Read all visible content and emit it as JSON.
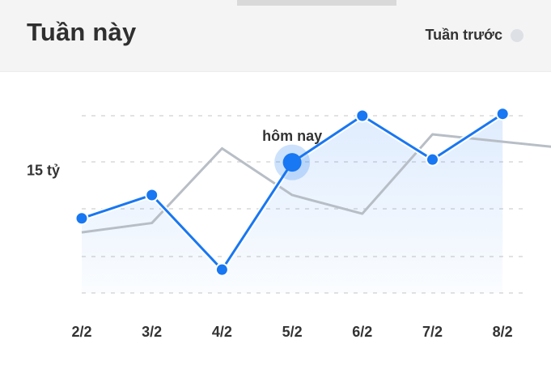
{
  "header": {
    "title": "Tuần này",
    "legend_label": "Tuần trước"
  },
  "colors": {
    "accent": "#1877f2",
    "previous_week": "#b8bec6",
    "grid": "#d8d8d8"
  },
  "chart_data": {
    "type": "line",
    "categories": [
      "2/2",
      "3/2",
      "4/2",
      "5/2",
      "6/2",
      "7/2",
      "8/2"
    ],
    "ylim": [
      5,
      24
    ],
    "y_tick_label": "15 tỷ",
    "y_tick_value": 15,
    "series": [
      {
        "key": "this_week",
        "values": [
          13,
          15.5,
          7.5,
          19,
          24,
          19.3,
          24.2
        ]
      },
      {
        "key": "last_week",
        "values": [
          11.5,
          12.5,
          20.5,
          15.5,
          13.5,
          22,
          20.2
        ],
        "x_end": 7.3
      }
    ],
    "annotation": {
      "text": "hôm nay",
      "category": "5/2"
    }
  }
}
